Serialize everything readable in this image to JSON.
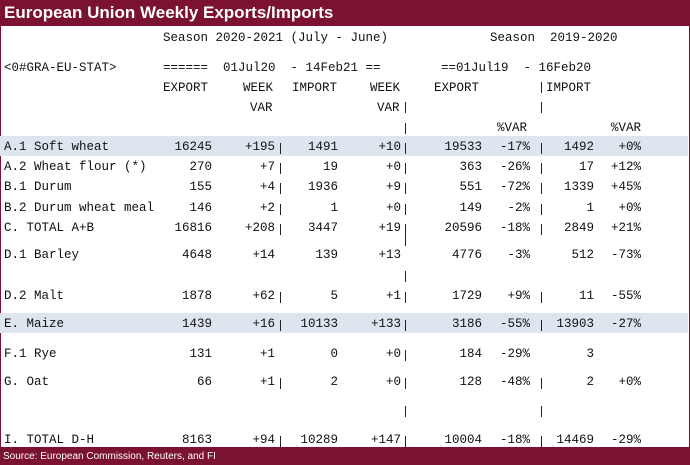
{
  "title": "European Union Weekly Exports/Imports",
  "season_current": "Season 2020-2021 (July - June)",
  "season_prior": "Season  2019-2020",
  "ric": "<0#GRA-EU-STAT>",
  "range_current": "======  01Jul20  - 14Feb21 ==",
  "range_prior": "==01Jul19  - 16Feb20",
  "headers": {
    "export": "EXPORT",
    "week": "WEEK",
    "var": "VAR",
    "import": "IMPORT",
    "week2": "WEEK",
    "var2": "VAR",
    "export_prior": "EXPORT",
    "import_prior": "IMPORT",
    "pct_var": "%VAR",
    "pct_var2": "%VAR"
  },
  "rows": [
    {
      "label": "A.1 Soft wheat",
      "export": "16245",
      "wvar": "+195",
      "import": "1491",
      "iwvar": "+10",
      "export_prior": "19533",
      "export_pct": "-17%",
      "import_prior": "1492",
      "import_pct": "+0%"
    },
    {
      "label": "A.2 Wheat flour (*)",
      "export": "270",
      "wvar": "+7",
      "import": "19",
      "iwvar": "+0",
      "export_prior": "363",
      "export_pct": "-26%",
      "import_prior": "17",
      "import_pct": "+12%"
    },
    {
      "label": "B.1 Durum",
      "export": "155",
      "wvar": "+4",
      "import": "1936",
      "iwvar": "+9",
      "export_prior": "551",
      "export_pct": "-72%",
      "import_prior": "1339",
      "import_pct": "+45%"
    },
    {
      "label": "B.2 Durum wheat meal",
      "export": "146",
      "wvar": "+2",
      "import": "1",
      "iwvar": "+0",
      "export_prior": "149",
      "export_pct": "-2%",
      "import_prior": "1",
      "import_pct": "+0%"
    },
    {
      "label": "C. TOTAL A+B",
      "export": "16816",
      "wvar": "+208",
      "import": "3447",
      "iwvar": "+19",
      "export_prior": "20596",
      "export_pct": "-18%",
      "import_prior": "2849",
      "import_pct": "+21%"
    },
    {
      "label": "D.1 Barley",
      "export": "4648",
      "wvar": "+14",
      "import": "139",
      "iwvar": "+13",
      "export_prior": "4776",
      "export_pct": "-3%",
      "import_prior": "512",
      "import_pct": "-73%"
    },
    {
      "label": "D.2 Malt",
      "export": "1878",
      "wvar": "+62",
      "import": "5",
      "iwvar": "+1",
      "export_prior": "1729",
      "export_pct": "+9%",
      "import_prior": "11",
      "import_pct": "-55%"
    },
    {
      "label": "E. Maize",
      "export": "1439",
      "wvar": "+16",
      "import": "10133",
      "iwvar": "+133",
      "export_prior": "3186",
      "export_pct": "-55%",
      "import_prior": "13903",
      "import_pct": "-27%"
    },
    {
      "label": "F.1 Rye",
      "export": "131",
      "wvar": "+1",
      "import": "0",
      "iwvar": "+0",
      "export_prior": "184",
      "export_pct": "-29%",
      "import_prior": "3",
      "import_pct": ""
    },
    {
      "label": "G. Oat",
      "export": "66",
      "wvar": "+1",
      "import": "2",
      "iwvar": "+0",
      "export_prior": "128",
      "export_pct": "-48%",
      "import_prior": "2",
      "import_pct": "+0%"
    },
    {
      "label": "I. TOTAL D-H",
      "export": "8163",
      "wvar": "+94",
      "import": "10289",
      "iwvar": "+147",
      "export_prior": "10004",
      "export_pct": "-18%",
      "import_prior": "14469",
      "import_pct": "-29%"
    }
  ],
  "footer": "Source: European Commission, Reuters, and FI",
  "colors": {
    "brand": "#7b1230",
    "highlight": "#dde5ef"
  }
}
